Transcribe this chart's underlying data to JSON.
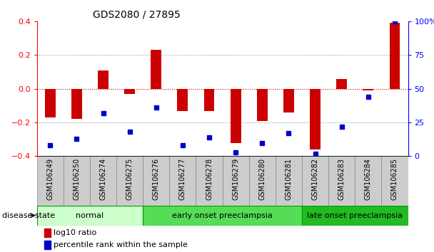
{
  "title": "GDS2080 / 27895",
  "samples": [
    "GSM106249",
    "GSM106250",
    "GSM106274",
    "GSM106275",
    "GSM106276",
    "GSM106277",
    "GSM106278",
    "GSM106279",
    "GSM106280",
    "GSM106281",
    "GSM106282",
    "GSM106283",
    "GSM106284",
    "GSM106285"
  ],
  "log10_ratio": [
    -0.17,
    -0.18,
    0.11,
    -0.03,
    0.23,
    -0.13,
    -0.13,
    -0.32,
    -0.19,
    -0.14,
    -0.36,
    0.06,
    -0.01,
    0.39
  ],
  "percentile_rank": [
    8,
    13,
    32,
    18,
    36,
    8,
    14,
    3,
    10,
    17,
    2,
    22,
    44,
    100
  ],
  "ylim_left": [
    -0.4,
    0.4
  ],
  "ylim_right": [
    0,
    100
  ],
  "yticks_left": [
    -0.4,
    -0.2,
    0.0,
    0.2,
    0.4
  ],
  "yticks_right": [
    0,
    25,
    50,
    75,
    100
  ],
  "bar_color": "#cc0000",
  "dot_color": "#0000cc",
  "bar_width": 0.4,
  "dot_size": 4,
  "groups": [
    {
      "label": "normal",
      "start": 0,
      "end": 3,
      "color": "#ccffcc"
    },
    {
      "label": "early onset preeclampsia",
      "start": 4,
      "end": 9,
      "color": "#55dd55"
    },
    {
      "label": "late onset preeclampsia",
      "start": 10,
      "end": 13,
      "color": "#22bb22"
    }
  ],
  "legend_items": [
    {
      "label": "log10 ratio",
      "color": "#cc0000"
    },
    {
      "label": "percentile rank within the sample",
      "color": "#0000cc"
    }
  ],
  "grid_color": "#777777",
  "zero_line_color": "#cc0000",
  "disease_state_label": "disease state",
  "tick_box_color": "#cccccc",
  "tick_box_edge": "#888888",
  "title_fontsize": 10,
  "axis_fontsize": 8,
  "tick_fontsize": 7,
  "legend_fontsize": 8
}
